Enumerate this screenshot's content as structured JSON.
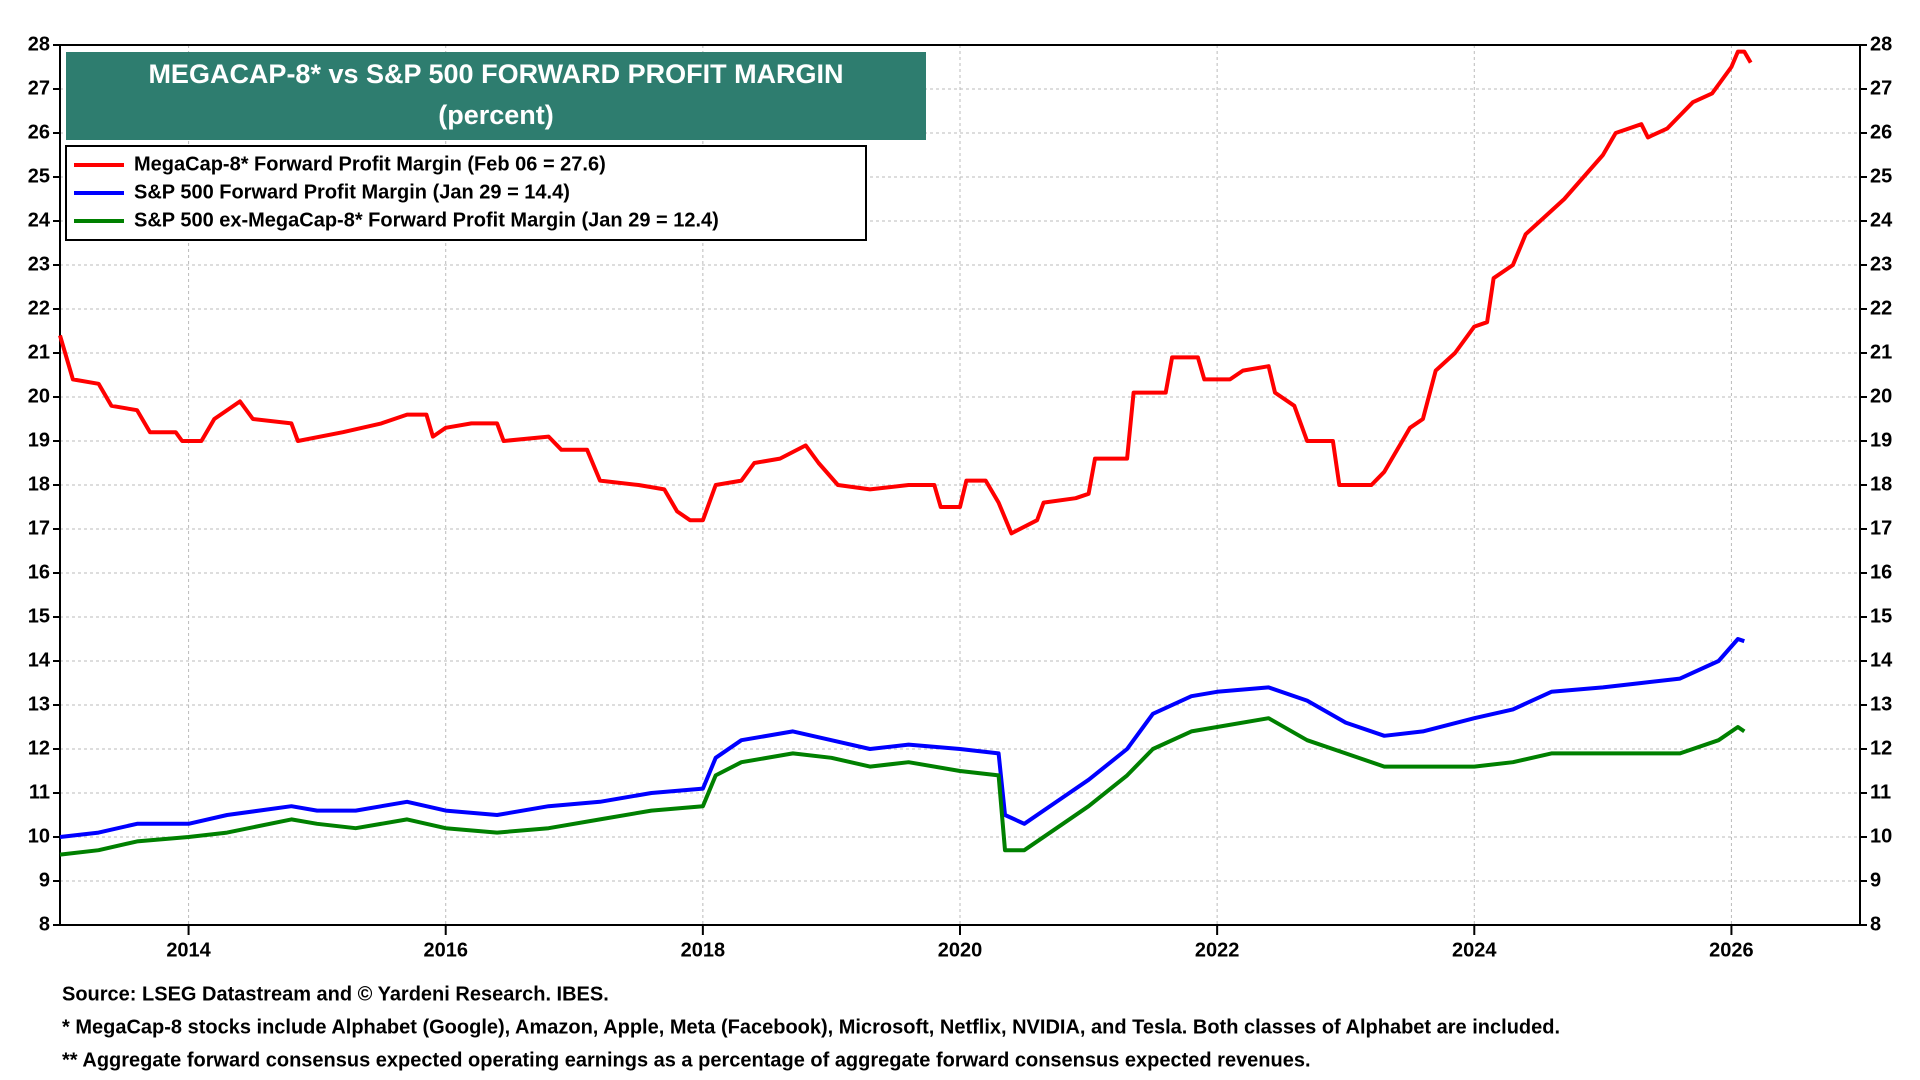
{
  "chart_data": {
    "type": "line",
    "title": "MEGACAP-8* vs S&P 500 FORWARD PROFIT MARGIN",
    "subtitle": "(percent)",
    "notes": [
      "Source: LSEG Datastream and © Yardeni Research. IBES.",
      "* MegaCap-8 stocks include Alphabet (Google), Amazon, Apple, Meta (Facebook), Microsoft, Netflix, NVIDIA, and Tesla. Both classes of Alphabet are included.",
      "** Aggregate forward consensus expected operating earnings as a percentage of aggregate forward consensus expected revenues."
    ],
    "xlim": [
      2013,
      2027
    ],
    "xticks": [
      2014,
      2016,
      2018,
      2020,
      2022,
      2024,
      2026
    ],
    "ylim": [
      8,
      28
    ],
    "yticks": [
      8,
      9,
      10,
      11,
      12,
      13,
      14,
      15,
      16,
      17,
      18,
      19,
      20,
      21,
      22,
      23,
      24,
      25,
      26,
      27,
      28
    ],
    "legend_position": "upper left",
    "series": [
      {
        "name": "MegaCap-8* Forward Profit Margin (Feb 06 = 27.6)",
        "color": "#ff0000",
        "x": [
          2013.0,
          2013.1,
          2013.3,
          2013.4,
          2013.6,
          2013.7,
          2013.9,
          2013.95,
          2014.1,
          2014.2,
          2014.4,
          2014.5,
          2014.8,
          2014.85,
          2015.2,
          2015.5,
          2015.7,
          2015.85,
          2015.9,
          2016.0,
          2016.2,
          2016.4,
          2016.45,
          2016.8,
          2016.9,
          2017.1,
          2017.2,
          2017.5,
          2017.7,
          2017.8,
          2017.9,
          2018.0,
          2018.1,
          2018.3,
          2018.4,
          2018.6,
          2018.8,
          2018.9,
          2019.05,
          2019.3,
          2019.6,
          2019.8,
          2019.85,
          2020.0,
          2020.05,
          2020.2,
          2020.3,
          2020.4,
          2020.6,
          2020.65,
          2020.9,
          2021.0,
          2021.05,
          2021.3,
          2021.35,
          2021.6,
          2021.65,
          2021.85,
          2021.9,
          2022.1,
          2022.2,
          2022.4,
          2022.45,
          2022.6,
          2022.7,
          2022.9,
          2022.95,
          2023.2,
          2023.3,
          2023.5,
          2023.6,
          2023.7,
          2023.85,
          2024.0,
          2024.1,
          2024.15,
          2024.3,
          2024.4,
          2024.55,
          2024.7,
          2024.85,
          2025.0,
          2025.1,
          2025.3,
          2025.35,
          2025.5,
          2025.6,
          2025.7,
          2025.85,
          2026.0,
          2026.05,
          2026.1,
          2026.15
        ],
        "values": [
          21.4,
          20.4,
          20.3,
          19.8,
          19.7,
          19.2,
          19.2,
          19.0,
          19.0,
          19.5,
          19.9,
          19.5,
          19.4,
          19.0,
          19.2,
          19.4,
          19.6,
          19.6,
          19.1,
          19.3,
          19.4,
          19.4,
          19.0,
          19.1,
          18.8,
          18.8,
          18.1,
          18.0,
          17.9,
          17.4,
          17.2,
          17.2,
          18.0,
          18.1,
          18.5,
          18.6,
          18.9,
          18.5,
          18.0,
          17.9,
          18.0,
          18.0,
          17.5,
          17.5,
          18.1,
          18.1,
          17.6,
          16.9,
          17.2,
          17.6,
          17.7,
          17.8,
          18.6,
          18.6,
          20.1,
          20.1,
          20.9,
          20.9,
          20.4,
          20.4,
          20.6,
          20.7,
          20.1,
          19.8,
          19.0,
          19.0,
          18.0,
          18.0,
          18.3,
          19.3,
          19.5,
          20.6,
          21.0,
          21.6,
          21.7,
          22.7,
          23.0,
          23.7,
          24.1,
          24.5,
          25.0,
          25.5,
          26.0,
          26.2,
          25.9,
          26.1,
          26.4,
          26.7,
          26.9,
          27.5,
          27.85,
          27.85,
          27.6
        ]
      },
      {
        "name": "S&P 500 Forward Profit Margin (Jan 29 = 14.4)",
        "color": "#0000ff",
        "x": [
          2013.0,
          2013.3,
          2013.6,
          2014.0,
          2014.3,
          2014.8,
          2015.0,
          2015.3,
          2015.7,
          2016.0,
          2016.4,
          2016.8,
          2017.2,
          2017.6,
          2018.0,
          2018.1,
          2018.3,
          2018.7,
          2019.0,
          2019.3,
          2019.6,
          2020.0,
          2020.3,
          2020.35,
          2020.5,
          2020.8,
          2021.0,
          2021.3,
          2021.5,
          2021.8,
          2022.0,
          2022.4,
          2022.7,
          2023.0,
          2023.3,
          2023.6,
          2024.0,
          2024.3,
          2024.6,
          2025.0,
          2025.3,
          2025.6,
          2025.9,
          2026.05,
          2026.1
        ],
        "values": [
          10.0,
          10.1,
          10.3,
          10.3,
          10.5,
          10.7,
          10.6,
          10.6,
          10.8,
          10.6,
          10.5,
          10.7,
          10.8,
          11.0,
          11.1,
          11.8,
          12.2,
          12.4,
          12.2,
          12.0,
          12.1,
          12.0,
          11.9,
          10.5,
          10.3,
          10.9,
          11.3,
          12.0,
          12.8,
          13.2,
          13.3,
          13.4,
          13.1,
          12.6,
          12.3,
          12.4,
          12.7,
          12.9,
          13.3,
          13.4,
          13.5,
          13.6,
          14.0,
          14.5,
          14.45
        ]
      },
      {
        "name": "S&P 500 ex-MegaCap-8* Forward Profit Margin (Jan 29 = 12.4)",
        "color": "#008000",
        "x": [
          2013.0,
          2013.3,
          2013.6,
          2014.0,
          2014.3,
          2014.8,
          2015.0,
          2015.3,
          2015.7,
          2016.0,
          2016.4,
          2016.8,
          2017.2,
          2017.6,
          2018.0,
          2018.1,
          2018.3,
          2018.7,
          2019.0,
          2019.3,
          2019.6,
          2020.0,
          2020.3,
          2020.35,
          2020.5,
          2020.8,
          2021.0,
          2021.3,
          2021.5,
          2021.8,
          2022.0,
          2022.4,
          2022.7,
          2023.0,
          2023.3,
          2023.6,
          2024.0,
          2024.3,
          2024.6,
          2025.0,
          2025.3,
          2025.6,
          2025.9,
          2026.05,
          2026.1
        ],
        "values": [
          9.6,
          9.7,
          9.9,
          10.0,
          10.1,
          10.4,
          10.3,
          10.2,
          10.4,
          10.2,
          10.1,
          10.2,
          10.4,
          10.6,
          10.7,
          11.4,
          11.7,
          11.9,
          11.8,
          11.6,
          11.7,
          11.5,
          11.4,
          9.7,
          9.7,
          10.3,
          10.7,
          11.4,
          12.0,
          12.4,
          12.5,
          12.7,
          12.2,
          11.9,
          11.6,
          11.6,
          11.6,
          11.7,
          11.9,
          11.9,
          11.9,
          11.9,
          12.2,
          12.5,
          12.4
        ]
      }
    ]
  }
}
